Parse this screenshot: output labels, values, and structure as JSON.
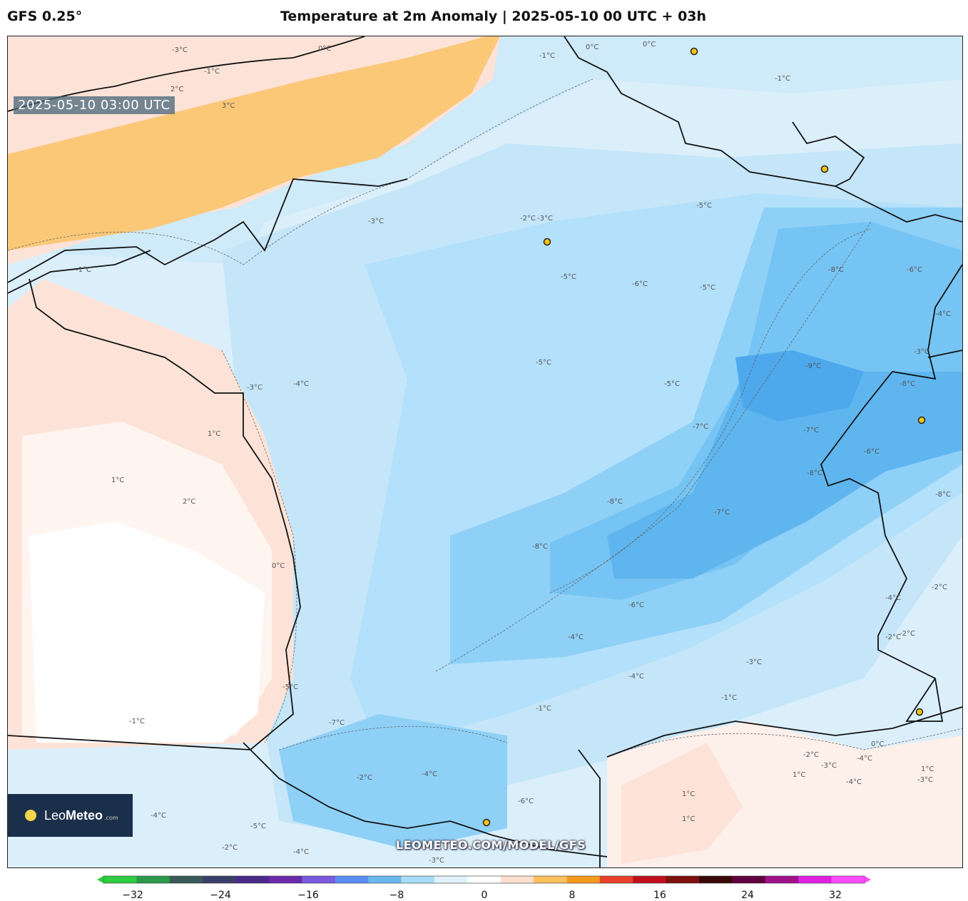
{
  "header": {
    "model": "GFS 0.25°",
    "title": "Temperature at 2m Anomaly | 2025-05-10 00 UTC + 03h"
  },
  "map": {
    "timestamp": "2025-05-10 03:00 UTC",
    "watermark": "LEOMETEO.COM/MODEL/GFS",
    "logo": {
      "brand_a": "Leo",
      "brand_b": "Meteo",
      "domain": ".com"
    },
    "contour_labels": [
      "0°C",
      "-1°C",
      "-2°C",
      "-3°C",
      "-4°C",
      "-5°C",
      "-6°C",
      "-7°C",
      "-8°C",
      "-9°C",
      "1°C",
      "2°C",
      "3°C"
    ],
    "labels": [
      {
        "t": "-3°C"
      },
      {
        "t": "0°C"
      },
      {
        "t": "-1°C"
      },
      {
        "t": "2°C"
      },
      {
        "t": "3°C"
      },
      {
        "t": "0°C"
      },
      {
        "t": "-1°C"
      },
      {
        "t": "0°C"
      },
      {
        "t": "-1°C"
      },
      {
        "t": "-3°C"
      },
      {
        "t": "-4°C"
      },
      {
        "t": "-5°C"
      },
      {
        "t": "-3°C"
      },
      {
        "t": "-2°C"
      },
      {
        "t": "-3°C"
      },
      {
        "t": "-1°C"
      },
      {
        "t": "-6°C"
      },
      {
        "t": "-5°C"
      },
      {
        "t": "-8°C"
      },
      {
        "t": "-6°C"
      },
      {
        "t": "-4°C"
      },
      {
        "t": "-3°C"
      },
      {
        "t": "-5°C"
      },
      {
        "t": "-5°C"
      },
      {
        "t": "-5°C"
      },
      {
        "t": "-9°C"
      },
      {
        "t": "-8°C"
      },
      {
        "t": "1°C"
      },
      {
        "t": "1°C"
      },
      {
        "t": "2°C"
      },
      {
        "t": "0°C"
      },
      {
        "t": "-7°C"
      },
      {
        "t": "-7°C"
      },
      {
        "t": "-6°C"
      },
      {
        "t": "-8°C"
      },
      {
        "t": "-8°C"
      },
      {
        "t": "-7°C"
      },
      {
        "t": "-8°C"
      },
      {
        "t": "-8°C"
      },
      {
        "t": "-6°C"
      },
      {
        "t": "-4°C"
      },
      {
        "t": "-4°C"
      },
      {
        "t": "-3°C"
      },
      {
        "t": "-2°C"
      },
      {
        "t": "-4°C"
      },
      {
        "t": "-1°C"
      },
      {
        "t": "-2°C"
      },
      {
        "t": "-7°C"
      },
      {
        "t": "-5°C"
      },
      {
        "t": "-4°C"
      },
      {
        "t": "-4°C"
      },
      {
        "t": "-2°C"
      },
      {
        "t": "-3°C"
      },
      {
        "t": "1°C"
      },
      {
        "t": "1°C"
      },
      {
        "t": "-1°C"
      },
      {
        "t": "1°C"
      },
      {
        "t": "0°C"
      },
      {
        "t": "-2°C"
      },
      {
        "t": "-6°C"
      },
      {
        "t": "-5°C"
      },
      {
        "t": "-2°C"
      },
      {
        "t": "-3°C"
      },
      {
        "t": "-4°C"
      },
      {
        "t": "-2°C"
      },
      {
        "t": "-4°C"
      },
      {
        "t": "-3°C"
      },
      {
        "t": "-4°C"
      },
      {
        "t": "1°C"
      },
      {
        "t": "-1°C"
      }
    ]
  },
  "colorbar": {
    "ticks": [
      "−32",
      "−24",
      "−16",
      "−8",
      "0",
      "8",
      "16",
      "24",
      "32"
    ],
    "colors": [
      "#2ecc40",
      "#2a9a4a",
      "#3a5a5a",
      "#3a3f6a",
      "#4a2a8a",
      "#6a2aaa",
      "#7a5ae0",
      "#5a8ef0",
      "#6ab8f0",
      "#a8dcf6",
      "#e0f2fb",
      "#ffffff",
      "#fde0d0",
      "#fbc060",
      "#f49a1e",
      "#e8402a",
      "#c01020",
      "#801010",
      "#3a0808",
      "#600040",
      "#a0108a",
      "#e020e0",
      "#ff4cff"
    ]
  }
}
